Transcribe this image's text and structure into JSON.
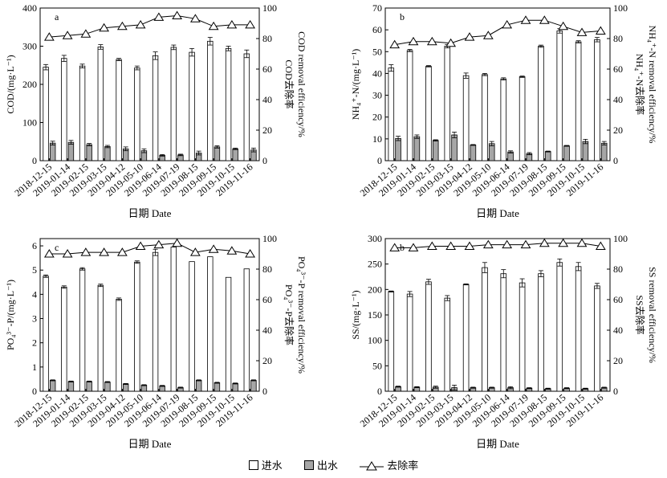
{
  "chart_data": [
    {
      "type": "bar",
      "panel_label": "a",
      "categories": [
        "2018-12-15",
        "2019-01-14",
        "2019-02-15",
        "2019-03-15",
        "2019-04-12",
        "2019-05-10",
        "2019-06-14",
        "2019-07-19",
        "2019-08-15",
        "2019-09-15",
        "2019-10-15",
        "2019-11-16"
      ],
      "series": [
        {
          "name": "进水",
          "values": [
            245,
            268,
            248,
            298,
            265,
            243,
            275,
            297,
            284,
            313,
            294,
            280
          ],
          "errors": [
            7,
            8,
            5,
            6,
            3,
            5,
            10,
            6,
            10,
            10,
            6,
            10
          ]
        },
        {
          "name": "出水",
          "values": [
            46,
            48,
            42,
            37,
            31,
            26,
            14,
            15,
            20,
            36,
            31,
            28
          ],
          "errors": [
            5,
            5,
            3,
            3,
            5,
            5,
            2,
            2,
            5,
            3,
            2,
            5
          ]
        }
      ],
      "line": {
        "name": "去除率",
        "values": [
          81,
          82,
          83,
          87,
          88,
          89,
          94,
          95,
          93,
          88,
          89,
          89
        ]
      },
      "ylabel": "COD/(mg·L⁻¹)",
      "y2label_cn": "COD去除率",
      "y2label_en": "COD removal efficiency/%",
      "xlabel": "日期 Date",
      "ylim": [
        0,
        400
      ],
      "yticks": [
        0,
        100,
        200,
        300,
        400
      ],
      "y2lim": [
        0,
        100
      ],
      "y2ticks": [
        0,
        20,
        40,
        60,
        80,
        100
      ]
    },
    {
      "type": "bar",
      "panel_label": "b",
      "categories": [
        "2018-12-15",
        "2019-01-14",
        "2019-02-15",
        "2019-03-15",
        "2019-04-12",
        "2019-05-10",
        "2019-06-14",
        "2019-07-19",
        "2019-08-15",
        "2019-09-15",
        "2019-10-15",
        "2019-11-16"
      ],
      "series": [
        {
          "name": "进水",
          "values": [
            42.5,
            50.5,
            43.3,
            52.5,
            39,
            39.5,
            37.5,
            38.5,
            52.5,
            59.5,
            54.5,
            55.5
          ],
          "errors": [
            1.5,
            0.5,
            0.3,
            0.8,
            1.2,
            0.5,
            0.5,
            0.3,
            0.5,
            1,
            0.5,
            1
          ]
        },
        {
          "name": "出水",
          "values": [
            10.2,
            11,
            9.3,
            11.8,
            7.2,
            7.8,
            4,
            3.2,
            4.2,
            6.8,
            8.8,
            8
          ],
          "errors": [
            1,
            0.8,
            0.3,
            1.3,
            0.2,
            1,
            0.5,
            0.5,
            0.2,
            0.2,
            1,
            0.8
          ]
        }
      ],
      "line": {
        "name": "去除率",
        "values": [
          76,
          78,
          78,
          77,
          81,
          82,
          89,
          92,
          92,
          88,
          84,
          85
        ]
      },
      "ylabel": "NH₄⁺-N/(mg·L⁻¹)",
      "y2label_cn": "NH₄⁺-N去除率",
      "y2label_en": "NH₄⁺-N removal efficiency/%",
      "xlabel": "日期 Date",
      "ylim": [
        0,
        70
      ],
      "yticks": [
        0,
        10,
        20,
        30,
        40,
        50,
        60,
        70
      ],
      "y2lim": [
        0,
        100
      ],
      "y2ticks": [
        0,
        20,
        40,
        60,
        80,
        100
      ]
    },
    {
      "type": "bar",
      "panel_label": "c",
      "categories": [
        "2018-12-15",
        "2019-01-14",
        "2019-02-15",
        "2019-03-15",
        "2019-04-12",
        "2019-05-10",
        "2019-06-14",
        "2019-07-19",
        "2019-08-15",
        "2019-09-15",
        "2019-10-15",
        "2019-11-16"
      ],
      "series": [
        {
          "name": "进水",
          "values": [
            4.75,
            4.3,
            5.05,
            4.37,
            3.8,
            5.33,
            5.73,
            5.95,
            5.35,
            5.55,
            4.7,
            5.05
          ],
          "errors": [
            0.05,
            0.05,
            0.05,
            0.05,
            0.05,
            0.05,
            0.13,
            0,
            0,
            0,
            0,
            0
          ]
        },
        {
          "name": "出水",
          "values": [
            0.45,
            0.4,
            0.4,
            0.38,
            0.3,
            0.25,
            0.22,
            0.15,
            0.45,
            0.35,
            0.32,
            0.45
          ],
          "errors": [
            0.02,
            0.02,
            0.02,
            0.02,
            0.02,
            0.02,
            0.02,
            0.02,
            0.02,
            0.02,
            0.02,
            0.02
          ]
        }
      ],
      "line": {
        "name": "去除率",
        "values": [
          90,
          90,
          91,
          91,
          91,
          95,
          96,
          97,
          91,
          93,
          92,
          90
        ]
      },
      "ylabel": "PO₄³⁻-P/(mg·L⁻¹)",
      "y2label_cn": "PO₄³⁻-P去除率",
      "y2label_en": "PO₄³⁻-P removal efficiency/%",
      "xlabel": "日期 Date",
      "ylim": [
        0,
        6.3
      ],
      "yticks": [
        0,
        1,
        2,
        3,
        4,
        5,
        6
      ],
      "y2lim": [
        0,
        100
      ],
      "y2ticks": [
        0,
        20,
        40,
        60,
        80,
        100
      ]
    },
    {
      "type": "bar",
      "panel_label": "b",
      "categories": [
        "2018-12-15",
        "2019-01-14",
        "2019-02-15",
        "2019-03-15",
        "2019-04-12",
        "2019-05-10",
        "2019-06-14",
        "2019-07-19",
        "2019-08-15",
        "2019-09-15",
        "2019-10-15",
        "2019-11-16"
      ],
      "series": [
        {
          "name": "进水",
          "values": [
            196,
            191,
            215,
            183,
            210,
            243,
            231,
            213,
            231,
            253,
            245,
            207
          ],
          "errors": [
            1,
            5,
            5,
            5,
            1,
            10,
            8,
            8,
            6,
            7,
            8,
            5
          ]
        },
        {
          "name": "出水",
          "values": [
            9,
            8,
            8,
            7,
            7,
            7,
            7,
            6,
            5,
            6,
            5,
            7
          ],
          "errors": [
            1,
            1,
            2,
            5,
            1,
            1,
            2,
            1,
            1,
            1,
            1,
            1
          ]
        }
      ],
      "line": {
        "name": "去除率",
        "values": [
          94,
          94,
          95,
          95,
          95,
          96,
          96,
          96,
          97,
          97,
          97,
          95
        ]
      },
      "ylabel": "SS/(mg·L⁻¹)",
      "y2label_cn": "SS去除率",
      "y2label_en": "SS removal efficiency/%",
      "xlabel": "日期 Date",
      "ylim": [
        0,
        300
      ],
      "yticks": [
        0,
        50,
        100,
        150,
        200,
        250,
        300
      ],
      "y2lim": [
        0,
        100
      ],
      "y2ticks": [
        0,
        20,
        40,
        60,
        80,
        100
      ]
    }
  ],
  "legend": {
    "influent": "进水",
    "effluent": "出水",
    "removal": "去除率"
  },
  "colors": {
    "influent_fill": "#ffffff",
    "effluent_fill": "#a6a6a6",
    "line": "#000000"
  }
}
